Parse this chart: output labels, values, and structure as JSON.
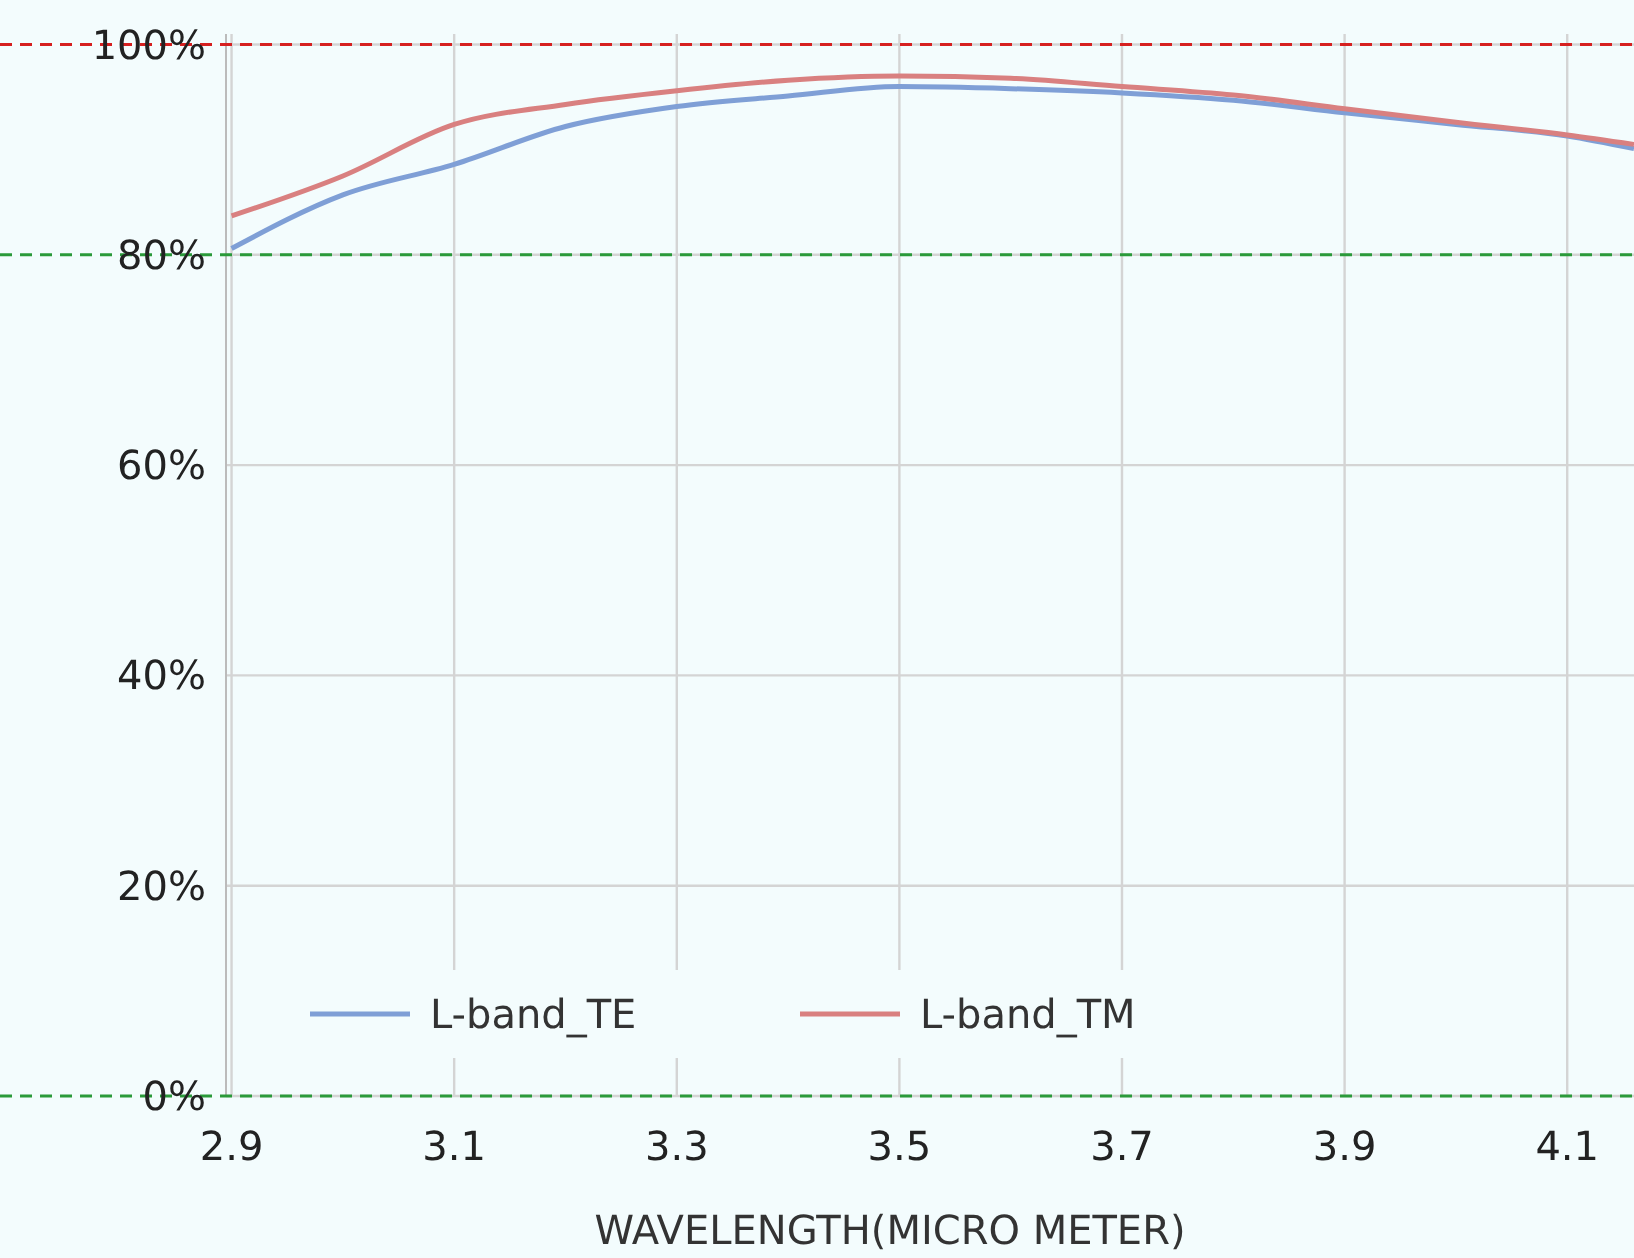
{
  "chart_data": {
    "type": "line",
    "xlabel": "WAVELENGTH(MICRO METER)",
    "xlim": [
      2.895,
      4.16
    ],
    "xticks": [
      {
        "value": 2.9,
        "label": "2.9"
      },
      {
        "value": 3.1,
        "label": "3.1"
      },
      {
        "value": 3.3,
        "label": "3.3"
      },
      {
        "value": 3.5,
        "label": "3.5"
      },
      {
        "value": 3.7,
        "label": "3.7"
      },
      {
        "value": 3.9,
        "label": "3.9"
      },
      {
        "value": 4.1,
        "label": "4.1"
      }
    ],
    "ylim": [
      0,
      101
    ],
    "yticks": [
      {
        "value": 0,
        "label": "0%"
      },
      {
        "value": 20,
        "label": "20%"
      },
      {
        "value": 40,
        "label": "40%"
      },
      {
        "value": 60,
        "label": "60%"
      },
      {
        "value": 80,
        "label": "80%"
      },
      {
        "value": 100,
        "label": "100%"
      }
    ],
    "x": [
      2.9,
      3.0,
      3.1,
      3.2,
      3.3,
      3.4,
      3.5,
      3.6,
      3.7,
      3.8,
      3.9,
      4.0,
      4.1,
      4.16
    ],
    "series": [
      {
        "name": "L-band_TE",
        "color": "#7f9fd6",
        "values": [
          80.6,
          85.7,
          88.6,
          92.2,
          94.1,
          95.1,
          96,
          95.8,
          95.4,
          94.7,
          93.5,
          92.4,
          91.3,
          90.1
        ]
      },
      {
        "name": "L-band_TM",
        "color": "#d98080",
        "values": [
          83.7,
          87.5,
          92.4,
          94.3,
          95.6,
          96.6,
          97,
          96.8,
          96,
          95.2,
          93.9,
          92.6,
          91.4,
          90.5
        ]
      }
    ],
    "ref_lines": [
      {
        "axis": "y",
        "value": 100,
        "color": "#d62020",
        "line_style": "dashed"
      },
      {
        "axis": "y",
        "value": 80,
        "color": "#2a9a3a",
        "line_style": "dashed"
      },
      {
        "axis": "y",
        "value": 0,
        "color": "#2a9a3a",
        "line_style": "dashed"
      }
    ],
    "grid": true,
    "legend": "bottom",
    "marker": "none",
    "line_style": "solid"
  }
}
